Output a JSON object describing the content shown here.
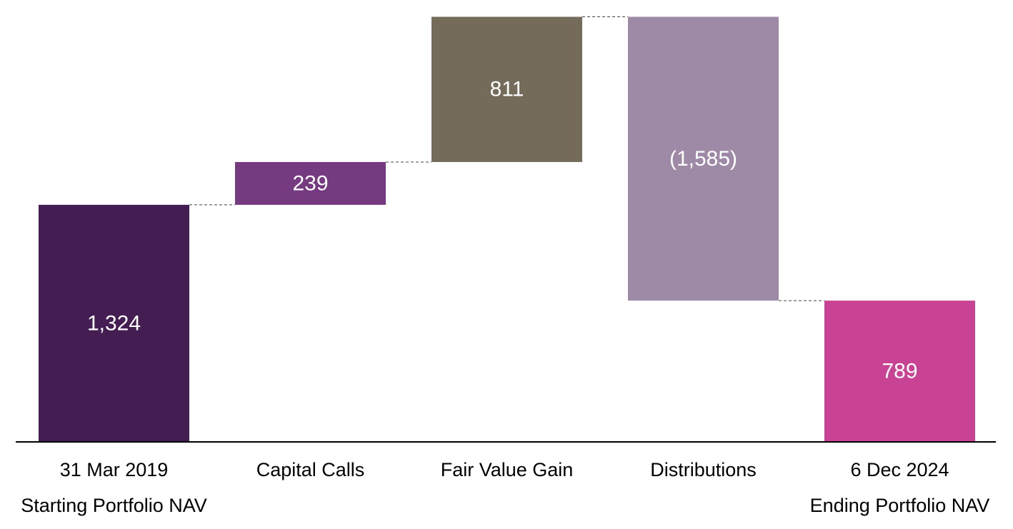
{
  "chart_data": {
    "type": "bar",
    "subtype": "waterfall",
    "title": "",
    "xlabel": "",
    "ylabel": "",
    "grid": false,
    "legend": "none",
    "ylim": [
      0,
      2400
    ],
    "categories": [
      [
        "31 Mar 2019",
        "Starting Portfolio NAV"
      ],
      [
        "Capital Calls"
      ],
      [
        "Fair Value Gain"
      ],
      [
        "Distributions"
      ],
      [
        "6 Dec 2024",
        "Ending Portfolio NAV"
      ]
    ],
    "values": [
      1324,
      239,
      811,
      -1585,
      789
    ],
    "kinds": [
      "total",
      "delta",
      "delta",
      "delta",
      "total"
    ],
    "data_labels": [
      "1,324",
      "239",
      "811",
      "(1,585)",
      "789"
    ],
    "colors": [
      "#441e52",
      "#763a80",
      "#746b5b",
      "#9e8aa6",
      "#c94395"
    ]
  }
}
